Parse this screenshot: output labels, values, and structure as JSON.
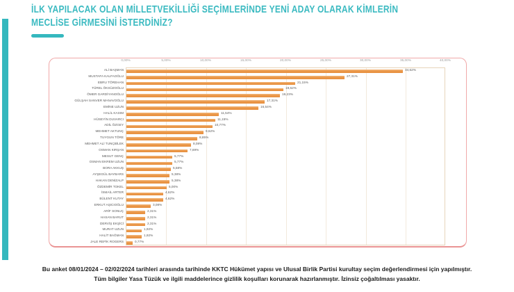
{
  "page": {
    "title_line1": "İLK YAPILACAK OLAN MİLLETVEKİLLİĞİ SEÇİMLERİNDE YENİ ADAY OLARAK KİMLERİN",
    "title_line2": "MECLİSE GİRMESİNİ İSTERDİNİZ?",
    "accent_color": "#35b8be",
    "bar_color": "#ea9748",
    "card_border_color": "#f0a8a8",
    "footer_line1": "Bu anket 08/01/2024 – 02/02/2024 tarihleri arasında tarihinde KKTC Hükümet yapısı ve Ulusal Birlik Partisi kurultay seçim değerlendirmesi için yapılmıştır.",
    "footer_line2": "Tüm bilgiler Yasa Tüzük ve ilgili maddelerince gizlilik koşulları korunarak hazırlanmıştır.  İzinsiz çoğaltılması yasaktır."
  },
  "chart_data": {
    "type": "bar",
    "orientation": "horizontal",
    "title": "İlk yapılacak olan milletvekilliği seçimlerinde yeni aday olarak kimlerin meclise girmesini isterdiniz?",
    "categories": [
      "ALİ BAŞMAN",
      "MUSTAFA KALFAOĞLU",
      "EBRU TÖREHAN",
      "TÜREL ÖKSÜZOĞLU",
      "ÖMER GARDİYANOĞLU",
      "GÜLŞAH SANVER MANAVOĞLU",
      "EMİNE UZUN",
      "HALİL KASIM",
      "HÜSEYİN DUVARCI",
      "ADİL ÖZGEY",
      "MEHMET AKTUNÇ",
      "TUYGUN TÖRE",
      "MEHMET ALİ TUNÇBİLEK",
      "OSMAN KIRŞAN",
      "MESUT GENÇ",
      "OSMAN EKREM UZUN",
      "BORA AKKUŞ",
      "AYŞEGÜL BAYBARS",
      "HAKAN DENİZALP",
      "ÖZDEMİR TOKEL",
      "İSMAİL ARTER",
      "BÜLENT KUTAY",
      "ERKUT AŞICIOĞLU",
      "ARİF SONUÇ",
      "HASAN BARUT",
      "DERVİŞ EKŞİCİ",
      "MURAT UZUN",
      "HALİT BAĞMAN",
      "JALE REFİK ROGERS"
    ],
    "values": [
      34.62,
      27.31,
      21.15,
      19.62,
      19.23,
      17.31,
      16.54,
      11.54,
      11.15,
      10.77,
      9.62,
      8.85,
      8.08,
      7.69,
      5.77,
      5.77,
      5.58,
      5.38,
      5.38,
      5.0,
      4.62,
      4.62,
      3.08,
      2.31,
      2.31,
      2.31,
      1.92,
      1.92,
      0.77
    ],
    "value_labels": [
      "34,62%",
      "27,31%",
      "21,15%",
      "19,62%",
      "19,23%",
      "17,31%",
      "16,54%",
      "11,54%",
      "11,15%",
      "10,77%",
      "9,62%",
      "8,85%",
      "8,08%",
      "7,69%",
      "5,77%",
      "5,77%",
      "5,58%",
      "5,38%",
      "5,38%",
      "5,00%",
      "4,62%",
      "4,62%",
      "3,08%",
      "2,31%",
      "2,31%",
      "2,31%",
      "1,92%",
      "1,92%",
      "0,77%"
    ],
    "x_ticks": [
      "0,00%",
      "5,00%",
      "10,00%",
      "15,00%",
      "20,00%",
      "25,00%",
      "30,00%",
      "35,00%",
      "40,00%"
    ],
    "xlim": [
      0,
      40
    ],
    "grid": true,
    "axis_position": "top",
    "legend": "none"
  }
}
